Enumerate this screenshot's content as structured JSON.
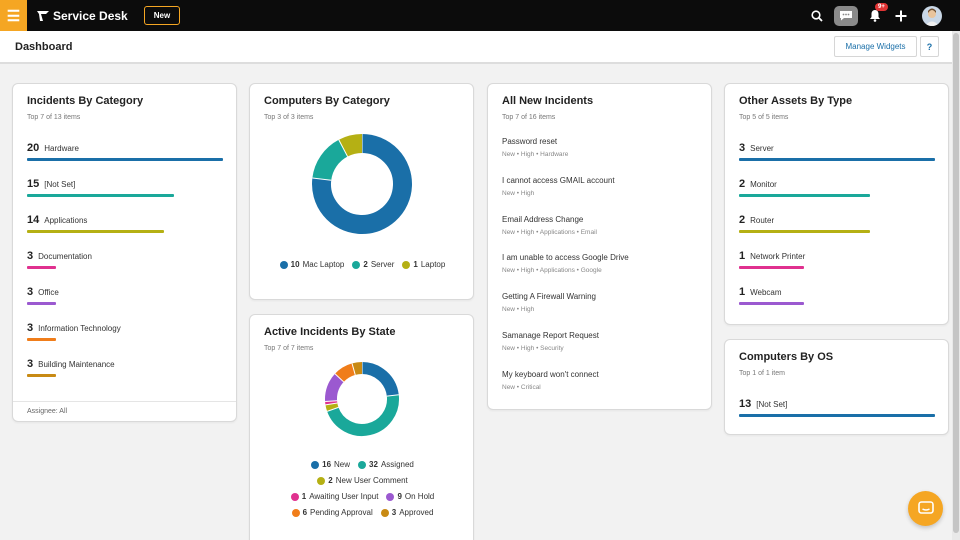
{
  "topbar": {
    "app_title": "Service Desk",
    "new_label": "New",
    "notification_badge": "9+"
  },
  "subheader": {
    "title": "Dashboard",
    "manage_widgets": "Manage Widgets",
    "help": "?"
  },
  "incidents_by_category": {
    "title": "Incidents By Category",
    "subtitle": "Top 7 of 13 items",
    "footer": "Assignee: All",
    "items": [
      {
        "count": "20",
        "label": "Hardware",
        "value": 20,
        "color": "#1a6fa8"
      },
      {
        "count": "15",
        "label": "[Not Set]",
        "value": 15,
        "color": "#1aa89a"
      },
      {
        "count": "14",
        "label": "Applications",
        "value": 14,
        "color": "#b5b014"
      },
      {
        "count": "3",
        "label": "Documentation",
        "value": 3,
        "color": "#e0318f"
      },
      {
        "count": "3",
        "label": "Office",
        "value": 3,
        "color": "#9b59d0"
      },
      {
        "count": "3",
        "label": "Information Technology",
        "value": 3,
        "color": "#f07d1a"
      },
      {
        "count": "3",
        "label": "Building Maintenance",
        "value": 3,
        "color": "#c88a14"
      }
    ]
  },
  "computers_by_category": {
    "title": "Computers By Category",
    "subtitle": "Top 3 of 3 items",
    "chart_data": {
      "type": "pie",
      "categories": [
        "Mac Laptop",
        "Server",
        "Laptop"
      ],
      "values": [
        10,
        2,
        1
      ],
      "colors": [
        "#1a6fa8",
        "#1aa89a",
        "#b5b014"
      ]
    },
    "legend": [
      {
        "count": "10",
        "label": "Mac Laptop",
        "color": "#1a6fa8"
      },
      {
        "count": "2",
        "label": "Server",
        "color": "#1aa89a"
      },
      {
        "count": "1",
        "label": "Laptop",
        "color": "#b5b014"
      }
    ]
  },
  "active_incidents_by_state": {
    "title": "Active Incidents By State",
    "subtitle": "Top 7 of 7 items",
    "chart_data": {
      "type": "pie",
      "categories": [
        "New",
        "Assigned",
        "New User Comment",
        "Awaiting User Input",
        "On Hold",
        "Pending Approval",
        "Approved"
      ],
      "values": [
        16,
        32,
        2,
        1,
        9,
        6,
        3
      ],
      "colors": [
        "#1a6fa8",
        "#1aa89a",
        "#b5b014",
        "#e0318f",
        "#9b59d0",
        "#f07d1a",
        "#c88a14"
      ]
    },
    "legend": [
      {
        "count": "16",
        "label": "New",
        "color": "#1a6fa8"
      },
      {
        "count": "32",
        "label": "Assigned",
        "color": "#1aa89a"
      },
      {
        "count": "2",
        "label": "New User Comment",
        "color": "#b5b014"
      },
      {
        "count": "1",
        "label": "Awaiting User Input",
        "color": "#e0318f"
      },
      {
        "count": "9",
        "label": "On Hold",
        "color": "#9b59d0"
      },
      {
        "count": "6",
        "label": "Pending Approval",
        "color": "#f07d1a"
      },
      {
        "count": "3",
        "label": "Approved",
        "color": "#c88a14"
      }
    ]
  },
  "all_new_incidents": {
    "title": "All New Incidents",
    "subtitle": "Top 7 of 16 items",
    "items": [
      {
        "title": "Password reset",
        "meta": "New  •  High  •  Hardware"
      },
      {
        "title": "I cannot access GMAIL account",
        "meta": "New  •  High"
      },
      {
        "title": "Email Address Change",
        "meta": "New  •  High  •  Applications  •  Email"
      },
      {
        "title": "I am unable to access Google Drive",
        "meta": "New  •  High  •  Applications  •  Google"
      },
      {
        "title": "Getting A Firewall Warning",
        "meta": "New  •  High"
      },
      {
        "title": "Samanage Report Request",
        "meta": "New  •  High  •  Security"
      },
      {
        "title": "My keyboard won't connect",
        "meta": "New  •  Critical"
      }
    ]
  },
  "other_assets_by_type": {
    "title": "Other Assets By Type",
    "subtitle": "Top 5 of 5 items",
    "items": [
      {
        "count": "3",
        "label": "Server",
        "value": 3,
        "color": "#1a6fa8"
      },
      {
        "count": "2",
        "label": "Monitor",
        "value": 2,
        "color": "#1aa89a"
      },
      {
        "count": "2",
        "label": "Router",
        "value": 2,
        "color": "#b5b014"
      },
      {
        "count": "1",
        "label": "Network Printer",
        "value": 1,
        "color": "#e0318f"
      },
      {
        "count": "1",
        "label": "Webcam",
        "value": 1,
        "color": "#9b59d0"
      }
    ]
  },
  "computers_by_os": {
    "title": "Computers By OS",
    "subtitle": "Top 1 of 1 item",
    "items": [
      {
        "count": "13",
        "label": "[Not Set]",
        "value": 13,
        "color": "#1a6fa8"
      }
    ]
  }
}
